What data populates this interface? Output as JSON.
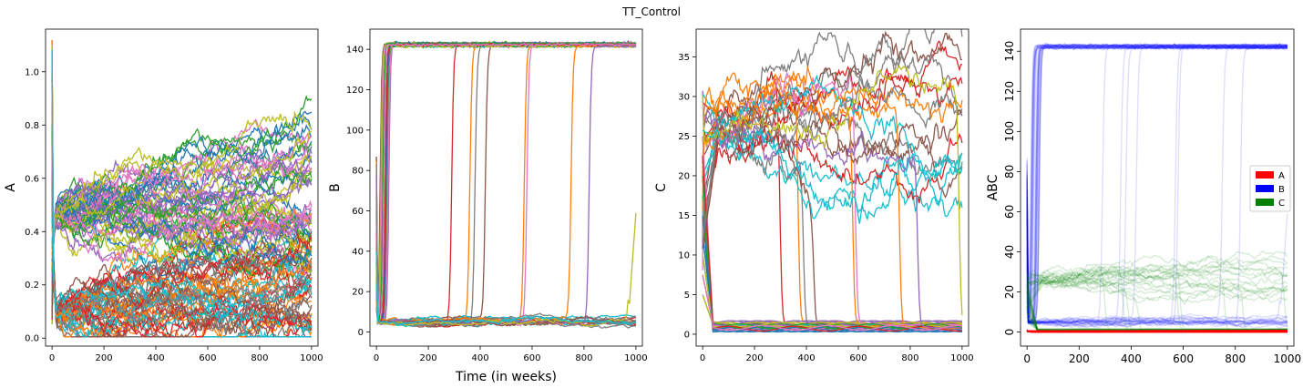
{
  "figure": {
    "title": "TT_Control"
  },
  "chart_data": [
    {
      "type": "line",
      "title": "",
      "xlabel": "",
      "ylabel": "A",
      "xlim": [
        -25,
        1025
      ],
      "ylim": [
        -0.03,
        1.16
      ],
      "xticks": [
        "0",
        "200",
        "400",
        "600",
        "800",
        "1000"
      ],
      "xtick_values": [
        0,
        200,
        400,
        600,
        800,
        1000
      ],
      "yticks": [
        "0.0",
        "0.2",
        "0.4",
        "0.6",
        "0.8",
        "1.0"
      ],
      "ytick_values": [
        0.0,
        0.2,
        0.4,
        0.6,
        0.8,
        1.0
      ],
      "series_count": 100,
      "summary": {
        "initial_peak": 1.13,
        "upper_group_start": 0.47,
        "upper_group_end_range": [
          0.35,
          0.77
        ],
        "lower_group_start": 0.1,
        "lower_group_end_range": [
          0.0,
          0.35
        ]
      },
      "legend": "none",
      "grid": false
    },
    {
      "type": "line",
      "title": "",
      "xlabel": "Time (in weeks)",
      "ylabel": "B",
      "xlim": [
        -25,
        1025
      ],
      "ylim": [
        -7,
        150
      ],
      "xticks": [
        "0",
        "200",
        "400",
        "600",
        "800",
        "1000"
      ],
      "xtick_values": [
        0,
        200,
        400,
        600,
        800,
        1000
      ],
      "yticks": [
        "0",
        "20",
        "40",
        "60",
        "80",
        "100",
        "120",
        "140"
      ],
      "ytick_values": [
        0,
        20,
        40,
        60,
        80,
        100,
        120,
        140
      ],
      "series_count": 50,
      "summary": {
        "high_level": 143,
        "low_level": 5,
        "late_switch_times": [
          290,
          360,
          380,
          420,
          570,
          580,
          750,
          820,
          980
        ],
        "late_rise_at_end": 59
      },
      "legend": "none",
      "grid": false
    },
    {
      "type": "line",
      "title": "",
      "xlabel": "",
      "ylabel": "C",
      "xlim": [
        -25,
        1025
      ],
      "ylim": [
        -1.5,
        38.5
      ],
      "xticks": [
        "0",
        "200",
        "400",
        "600",
        "800",
        "1000"
      ],
      "xtick_values": [
        0,
        200,
        400,
        600,
        800,
        1000
      ],
      "yticks": [
        "0",
        "5",
        "10",
        "15",
        "20",
        "25",
        "30",
        "35"
      ],
      "ytick_values": [
        0,
        5,
        10,
        15,
        20,
        25,
        30,
        35
      ],
      "series_count": 50,
      "summary": {
        "initial_spike": 35,
        "plateau": 25.5,
        "upper_end_range": [
          18,
          37
        ],
        "lower_level": 1,
        "drop_times": [
          290,
          360,
          380,
          420,
          570,
          580,
          750,
          820,
          980
        ]
      },
      "legend": "none",
      "grid": false
    },
    {
      "type": "line",
      "title": "",
      "xlabel": "",
      "ylabel": "ABC",
      "xlim": [
        -25,
        1025
      ],
      "ylim": [
        -7,
        151
      ],
      "xticks": [
        "0",
        "200",
        "400",
        "600",
        "800",
        "1000"
      ],
      "xtick_values": [
        0,
        200,
        400,
        600,
        800,
        1000
      ],
      "yticks": [
        "0",
        "20",
        "40",
        "60",
        "80",
        "100",
        "120",
        "140"
      ],
      "ytick_values": [
        0,
        20,
        40,
        60,
        80,
        100,
        120,
        140
      ],
      "series": [
        {
          "name": "A",
          "color": "#ff0000"
        },
        {
          "name": "B",
          "color": "#0000ff"
        },
        {
          "name": "C",
          "color": "#008000"
        }
      ],
      "legend": "center-right",
      "grid": false
    }
  ]
}
